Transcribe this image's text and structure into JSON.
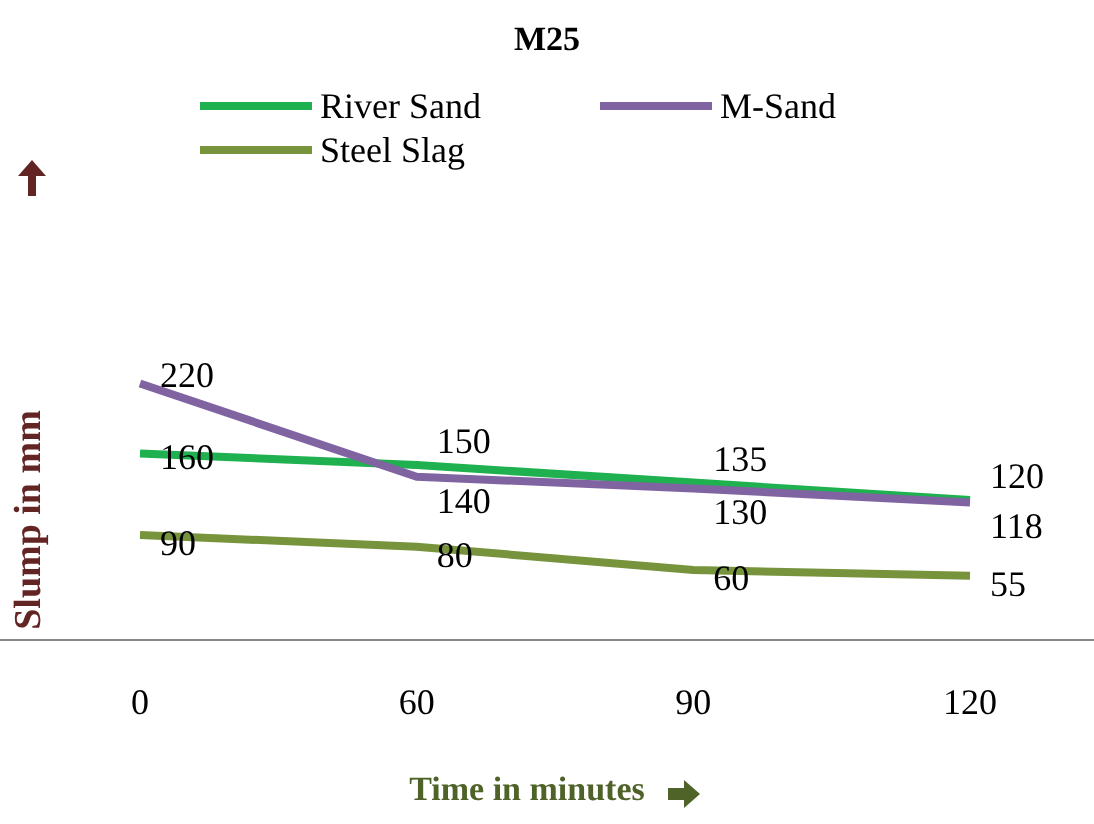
{
  "chart_data": {
    "type": "line",
    "title": "M25",
    "xlabel": "Time in minutes",
    "ylabel": "Slump in mm",
    "categories": [
      "0",
      "60",
      "90",
      "120"
    ],
    "series": [
      {
        "name": "River Sand",
        "color": "#1fb050",
        "values": [
          160,
          150,
          135,
          120
        ]
      },
      {
        "name": "M-Sand",
        "color": "#8064a2",
        "values": [
          220,
          140,
          130,
          118
        ]
      },
      {
        "name": "Steel Slag",
        "color": "#77933c",
        "values": [
          90,
          80,
          60,
          55
        ]
      }
    ],
    "data_labels": true,
    "legend": "top",
    "grid": false,
    "marker": "none",
    "line_style": "solid"
  }
}
